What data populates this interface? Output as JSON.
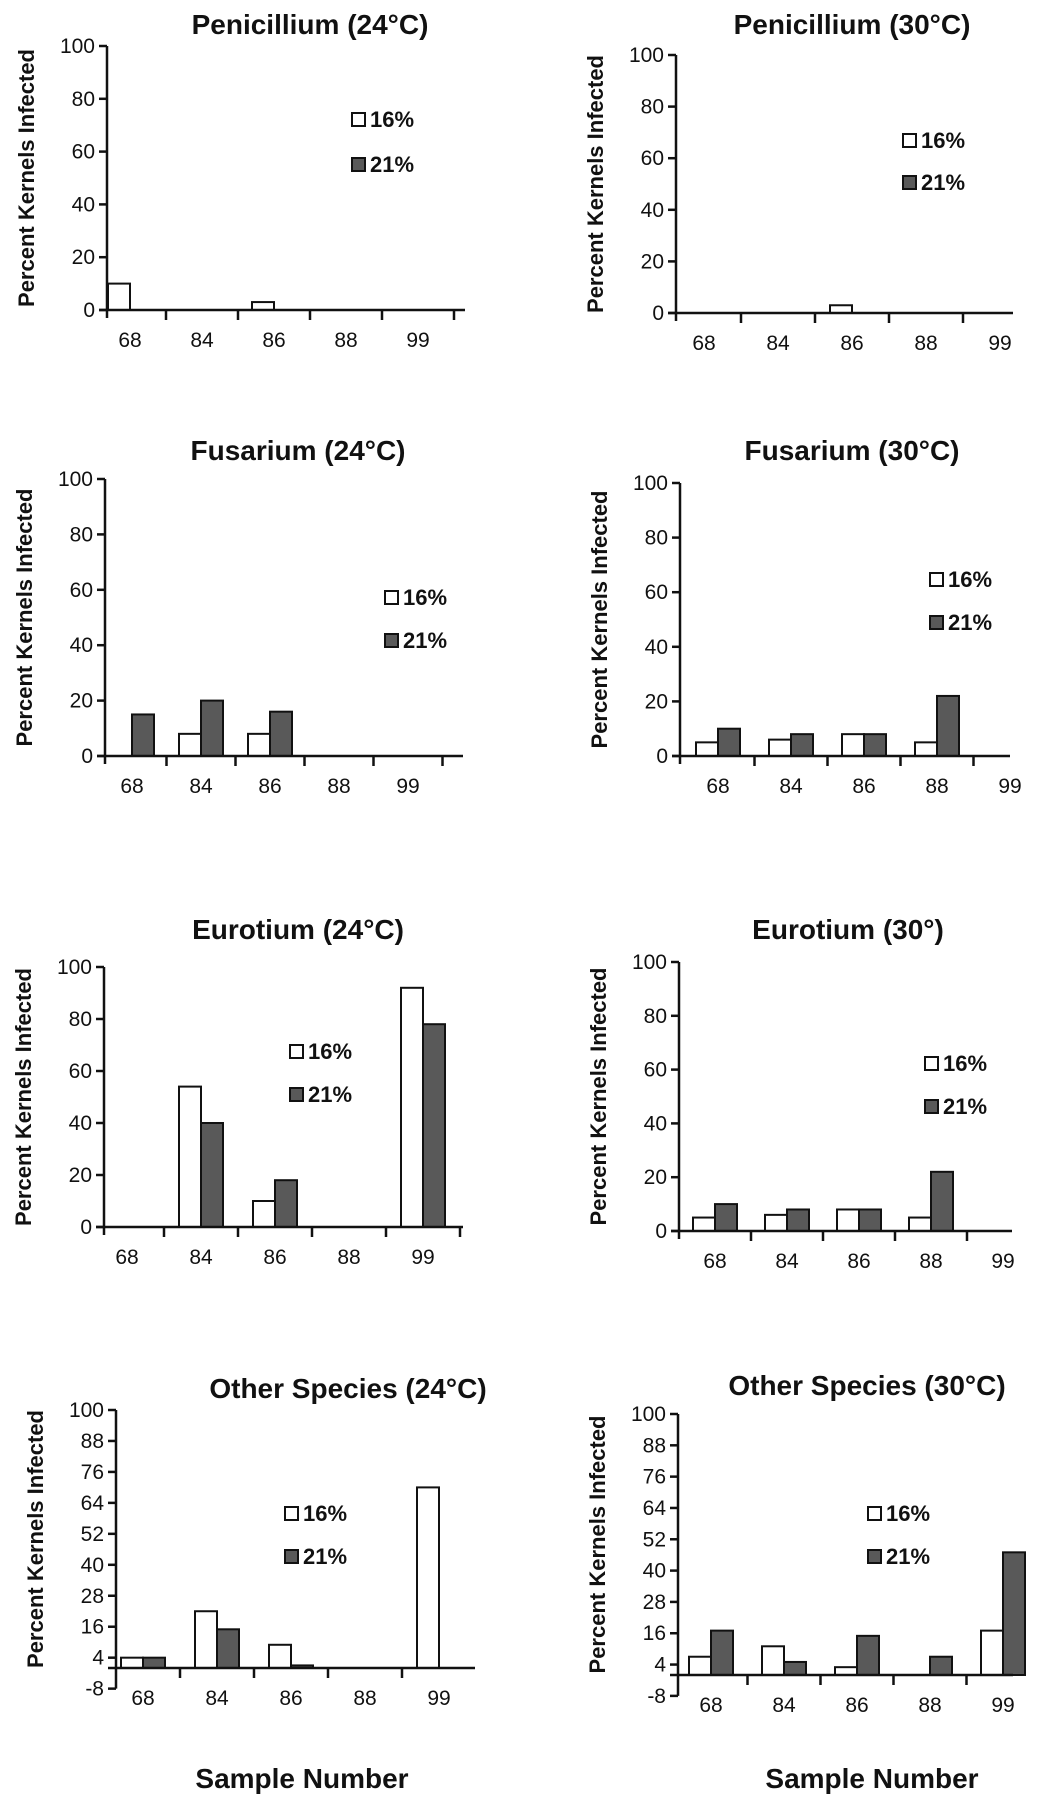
{
  "footer": {
    "left_label": "Sample Number",
    "right_label": "Sample Number"
  },
  "colors": {
    "sixteen": "#ffffff",
    "twentyone": "#595959"
  },
  "chart_data": [
    {
      "type": "bar",
      "title": "Penicillium (24°C)",
      "ylabel": "Percent Kernels Infected",
      "xlabel": "",
      "ylim": [
        0,
        100
      ],
      "yticks": [
        0,
        20,
        40,
        60,
        80,
        100
      ],
      "categories": [
        "68",
        "84",
        "86",
        "88",
        "99"
      ],
      "series": [
        {
          "name": "16%",
          "values": [
            10,
            0,
            3,
            0,
            0
          ]
        },
        {
          "name": "21%",
          "values": [
            0,
            0,
            0,
            0,
            0
          ]
        }
      ],
      "legend": "right"
    },
    {
      "type": "bar",
      "title": "Penicillium (30°C)",
      "ylabel": "Percent Kernels Infected",
      "xlabel": "",
      "ylim": [
        0,
        100
      ],
      "yticks": [
        0,
        20,
        40,
        60,
        80,
        100
      ],
      "categories": [
        "68",
        "84",
        "86",
        "88",
        "99"
      ],
      "series": [
        {
          "name": "16%",
          "values": [
            0,
            0,
            3,
            0,
            0
          ]
        },
        {
          "name": "21%",
          "values": [
            0,
            0,
            0,
            0,
            0
          ]
        }
      ],
      "legend": "right"
    },
    {
      "type": "bar",
      "title": "Fusarium (24°C)",
      "ylabel": "Percent Kernels Infected",
      "xlabel": "",
      "ylim": [
        0,
        100
      ],
      "yticks": [
        0,
        20,
        40,
        60,
        80,
        100
      ],
      "categories": [
        "68",
        "84",
        "86",
        "88",
        "99"
      ],
      "series": [
        {
          "name": "16%",
          "values": [
            0,
            8,
            8,
            0,
            0
          ]
        },
        {
          "name": "21%",
          "values": [
            15,
            20,
            16,
            0,
            0
          ]
        }
      ],
      "legend": "right"
    },
    {
      "type": "bar",
      "title": "Fusarium (30°C)",
      "ylabel": "Percent Kernels Infected",
      "xlabel": "",
      "ylim": [
        0,
        100
      ],
      "yticks": [
        0,
        20,
        40,
        60,
        80,
        100
      ],
      "categories": [
        "68",
        "84",
        "86",
        "88",
        "99"
      ],
      "series": [
        {
          "name": "16%",
          "values": [
            5,
            6,
            8,
            5,
            0
          ]
        },
        {
          "name": "21%",
          "values": [
            10,
            8,
            8,
            22,
            0
          ]
        }
      ],
      "legend": "right"
    },
    {
      "type": "bar",
      "title": "Eurotium (24°C)",
      "ylabel": "Percent Kernels Infected",
      "xlabel": "",
      "ylim": [
        0,
        100
      ],
      "yticks": [
        0,
        20,
        40,
        60,
        80,
        100
      ],
      "categories": [
        "68",
        "84",
        "86",
        "88",
        "99"
      ],
      "series": [
        {
          "name": "16%",
          "values": [
            0,
            54,
            10,
            0,
            92
          ]
        },
        {
          "name": "21%",
          "values": [
            0,
            40,
            18,
            0,
            78
          ]
        }
      ],
      "legend": "center"
    },
    {
      "type": "bar",
      "title": "Eurotium (30°)",
      "ylabel": "Percent Kernels Infected",
      "xlabel": "",
      "ylim": [
        0,
        100
      ],
      "yticks": [
        0,
        20,
        40,
        60,
        80,
        100
      ],
      "categories": [
        "68",
        "84",
        "86",
        "88",
        "99"
      ],
      "series": [
        {
          "name": "16%",
          "values": [
            5,
            6,
            8,
            5,
            0
          ]
        },
        {
          "name": "21%",
          "values": [
            10,
            8,
            8,
            22,
            0
          ]
        }
      ],
      "legend": "right"
    },
    {
      "type": "bar",
      "title": "Other Species (24°C)",
      "ylabel": "Percent Kernels Infected",
      "xlabel": "",
      "ylim": [
        -8,
        100
      ],
      "yticks": [
        -8,
        4,
        16,
        28,
        40,
        52,
        64,
        76,
        88,
        100
      ],
      "categories": [
        "68",
        "84",
        "86",
        "88",
        "99"
      ],
      "series": [
        {
          "name": "16%",
          "values": [
            4,
            22,
            9,
            0,
            70
          ]
        },
        {
          "name": "21%",
          "values": [
            4,
            15,
            1,
            0,
            0
          ]
        }
      ],
      "legend": "center"
    },
    {
      "type": "bar",
      "title": "Other Species (30°C)",
      "ylabel": "Percent Kernels Infected",
      "xlabel": "",
      "ylim": [
        -8,
        100
      ],
      "yticks": [
        -8,
        4,
        16,
        28,
        40,
        52,
        64,
        76,
        88,
        100
      ],
      "categories": [
        "68",
        "84",
        "86",
        "88",
        "99"
      ],
      "series": [
        {
          "name": "16%",
          "values": [
            7,
            11,
            3,
            0,
            17
          ]
        },
        {
          "name": "21%",
          "values": [
            17,
            5,
            15,
            7,
            47
          ]
        }
      ],
      "legend": "center"
    }
  ]
}
